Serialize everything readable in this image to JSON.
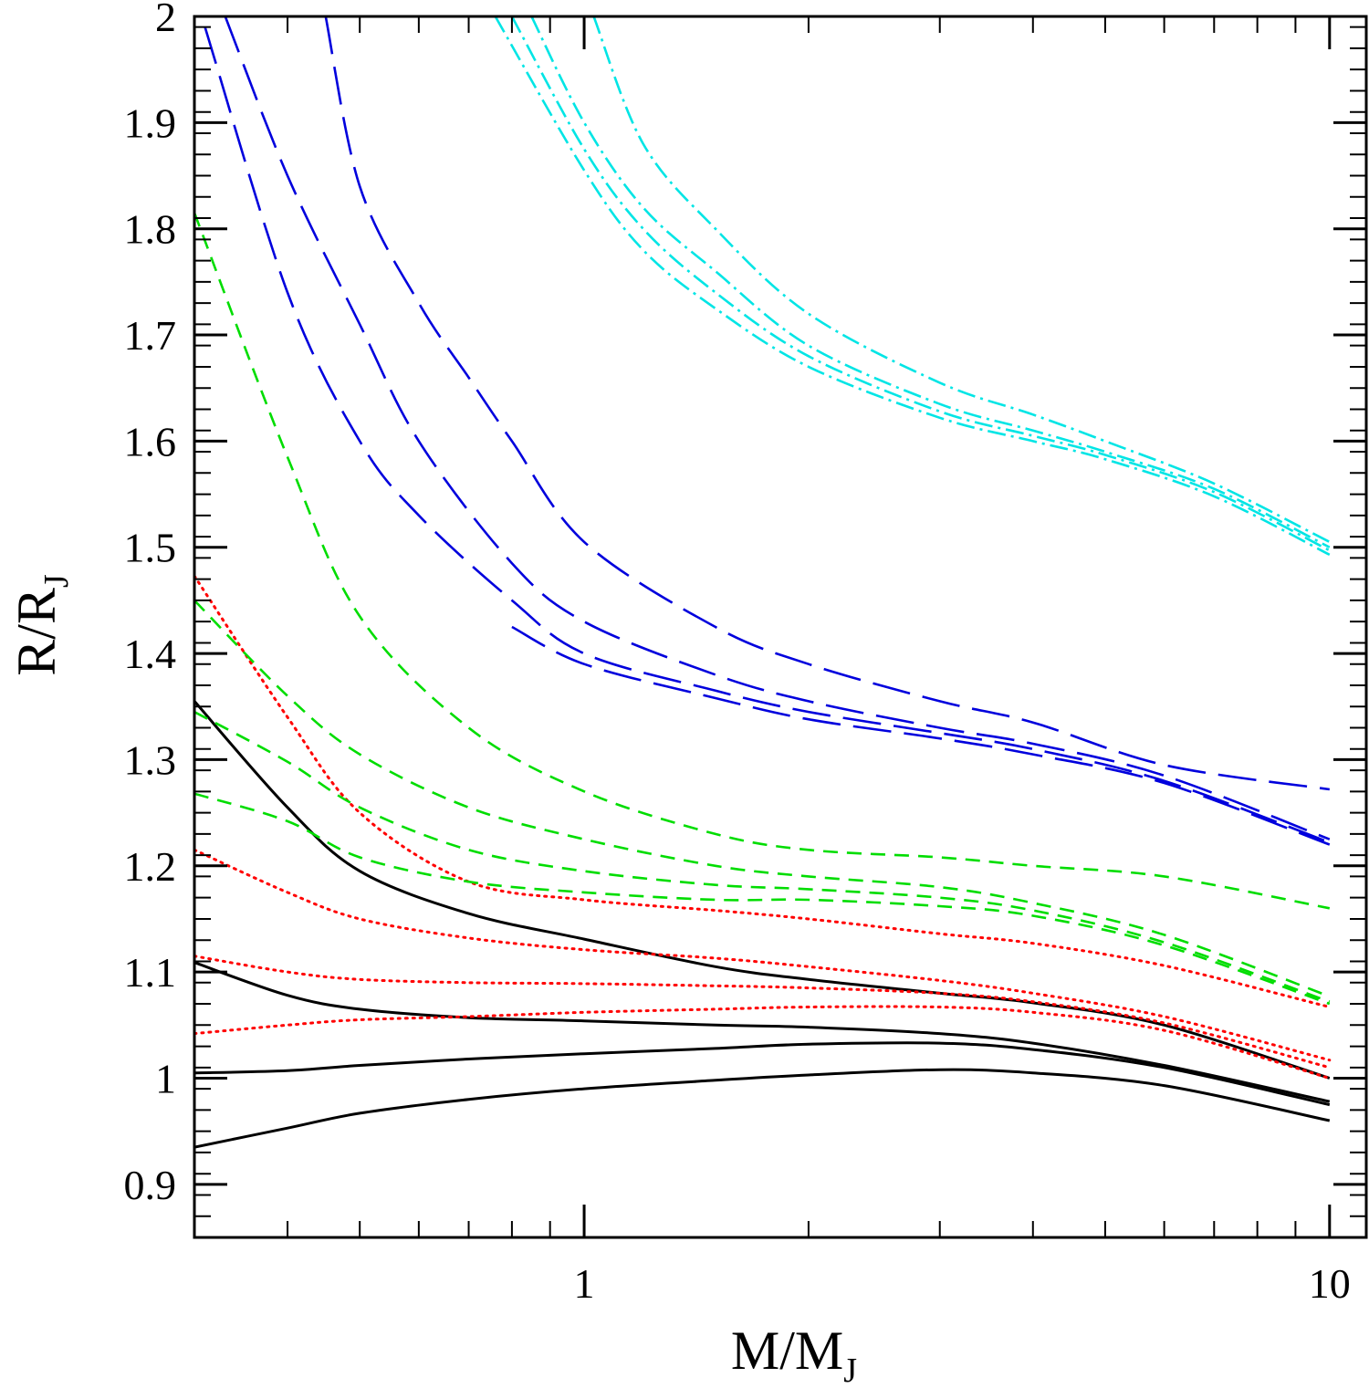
{
  "chart_data": {
    "type": "line",
    "title": "",
    "xlabel": {
      "main": "M/M",
      "sub": "J"
    },
    "ylabel": {
      "main": "R/R",
      "sub": "J"
    },
    "xscale": "log",
    "xlim": [
      0.3,
      11.2
    ],
    "ylim": [
      0.85,
      2.0
    ],
    "x_ticks": [
      {
        "value": 1,
        "label": "1"
      },
      {
        "value": 10,
        "label": "10"
      }
    ],
    "y_ticks": [
      {
        "value": 0.9,
        "label": "0.9"
      },
      {
        "value": 1.0,
        "label": "1"
      },
      {
        "value": 1.1,
        "label": "1.1"
      },
      {
        "value": 1.2,
        "label": "1.2"
      },
      {
        "value": 1.3,
        "label": "1.3"
      },
      {
        "value": 1.4,
        "label": "1.4"
      },
      {
        "value": 1.5,
        "label": "1.5"
      },
      {
        "value": 1.6,
        "label": "1.6"
      },
      {
        "value": 1.7,
        "label": "1.7"
      },
      {
        "value": 1.8,
        "label": "1.8"
      },
      {
        "value": 1.9,
        "label": "1.9"
      },
      {
        "value": 2.0,
        "label": "2"
      }
    ],
    "x_minor_ticks": [
      0.3,
      0.4,
      0.5,
      0.6,
      0.7,
      0.8,
      0.9,
      2,
      3,
      4,
      5,
      6,
      7,
      8,
      9
    ],
    "grid": false,
    "legend": "none",
    "colors": {
      "black": "#000000",
      "red": "#ff0000",
      "green": "#00dd00",
      "blue": "#0000dd",
      "cyan": "#00e5e5"
    },
    "series": [
      {
        "color": "black",
        "style": "solid",
        "x": [
          0.3,
          0.4,
          0.5,
          0.7,
          1.0,
          1.5,
          2.0,
          3.0,
          4.0,
          6.0,
          10.0
        ],
        "y": [
          1.355,
          1.255,
          1.195,
          1.155,
          1.131,
          1.105,
          1.093,
          1.08,
          1.071,
          1.05,
          1.0
        ]
      },
      {
        "color": "black",
        "style": "solid",
        "x": [
          0.3,
          0.4,
          0.5,
          0.7,
          1.0,
          1.5,
          2.0,
          3.0,
          4.0,
          6.0,
          10.0
        ],
        "y": [
          1.109,
          1.078,
          1.065,
          1.057,
          1.054,
          1.05,
          1.048,
          1.042,
          1.033,
          1.012,
          0.978
        ]
      },
      {
        "color": "black",
        "style": "solid",
        "x": [
          0.3,
          0.4,
          0.5,
          0.7,
          1.0,
          1.5,
          2.0,
          3.0,
          4.0,
          6.0,
          10.0
        ],
        "y": [
          1.005,
          1.007,
          1.012,
          1.018,
          1.023,
          1.028,
          1.032,
          1.033,
          1.027,
          1.01,
          0.975
        ]
      },
      {
        "color": "black",
        "style": "solid",
        "x": [
          0.3,
          0.4,
          0.5,
          0.7,
          1.0,
          1.5,
          2.0,
          3.0,
          4.0,
          6.0,
          10.0
        ],
        "y": [
          0.935,
          0.953,
          0.967,
          0.98,
          0.99,
          0.998,
          1.003,
          1.008,
          1.005,
          0.993,
          0.96
        ]
      },
      {
        "color": "red",
        "style": "dotted",
        "x": [
          0.3,
          0.4,
          0.5,
          0.7,
          1.0,
          1.5,
          2.0,
          3.0,
          4.0,
          6.0,
          10.0
        ],
        "y": [
          1.473,
          1.34,
          1.25,
          1.185,
          1.168,
          1.158,
          1.15,
          1.136,
          1.127,
          1.106,
          1.067
        ]
      },
      {
        "color": "red",
        "style": "dotted",
        "x": [
          0.3,
          0.4,
          0.5,
          0.7,
          1.0,
          1.5,
          2.0,
          3.0,
          4.0,
          6.0,
          10.0
        ],
        "y": [
          1.215,
          1.175,
          1.15,
          1.132,
          1.121,
          1.113,
          1.105,
          1.092,
          1.08,
          1.058,
          1.017
        ]
      },
      {
        "color": "red",
        "style": "dotted",
        "x": [
          0.3,
          0.4,
          0.5,
          0.7,
          1.0,
          1.5,
          2.0,
          3.0,
          4.0,
          6.0,
          10.0
        ],
        "y": [
          1.115,
          1.1,
          1.093,
          1.09,
          1.089,
          1.087,
          1.085,
          1.08,
          1.072,
          1.052,
          1.01
        ]
      },
      {
        "color": "red",
        "style": "dotted",
        "x": [
          0.3,
          0.4,
          0.5,
          0.7,
          1.0,
          1.5,
          2.0,
          3.0,
          4.0,
          6.0,
          10.0
        ],
        "y": [
          1.042,
          1.05,
          1.055,
          1.058,
          1.062,
          1.065,
          1.067,
          1.067,
          1.062,
          1.045,
          1.0
        ]
      },
      {
        "color": "green",
        "style": "short-dash",
        "x": [
          0.3,
          0.4,
          0.5,
          0.7,
          1.0,
          1.5,
          2.0,
          3.0,
          4.0,
          6.0,
          10.0
        ],
        "y": [
          1.815,
          1.585,
          1.435,
          1.33,
          1.27,
          1.23,
          1.215,
          1.208,
          1.2,
          1.19,
          1.16
        ]
      },
      {
        "color": "green",
        "style": "short-dash",
        "x": [
          0.3,
          0.4,
          0.5,
          0.7,
          1.0,
          1.5,
          2.0,
          3.0,
          4.0,
          6.0,
          10.0
        ],
        "y": [
          1.45,
          1.36,
          1.305,
          1.255,
          1.225,
          1.2,
          1.19,
          1.18,
          1.165,
          1.135,
          1.077
        ]
      },
      {
        "color": "green",
        "style": "short-dash",
        "x": [
          0.3,
          0.4,
          0.5,
          0.7,
          1.0,
          1.5,
          2.0,
          3.0,
          4.0,
          6.0,
          10.0
        ],
        "y": [
          1.345,
          1.298,
          1.255,
          1.215,
          1.195,
          1.182,
          1.178,
          1.17,
          1.158,
          1.128,
          1.072
        ]
      },
      {
        "color": "green",
        "style": "short-dash",
        "x": [
          0.3,
          0.4,
          0.5,
          0.7,
          1.0,
          1.5,
          2.0,
          3.0,
          4.0,
          6.0,
          10.0
        ],
        "y": [
          1.268,
          1.242,
          1.208,
          1.185,
          1.175,
          1.168,
          1.168,
          1.162,
          1.153,
          1.125,
          1.07
        ]
      },
      {
        "color": "blue",
        "style": "long-dash",
        "x": [
          0.45,
          0.5,
          0.6,
          0.7,
          0.8,
          1.0,
          1.5,
          2.0,
          3.0,
          4.0,
          6.0,
          10.0
        ],
        "y": [
          2.0,
          1.84,
          1.73,
          1.66,
          1.6,
          1.505,
          1.425,
          1.39,
          1.355,
          1.335,
          1.295,
          1.272
        ]
      },
      {
        "color": "blue",
        "style": "long-dash",
        "x": [
          0.33,
          0.4,
          0.5,
          0.6,
          0.8,
          1.0,
          1.5,
          2.0,
          3.0,
          4.0,
          6.0,
          10.0
        ],
        "y": [
          2.0,
          1.85,
          1.71,
          1.6,
          1.485,
          1.43,
          1.38,
          1.355,
          1.33,
          1.315,
          1.285,
          1.225
        ]
      },
      {
        "color": "blue",
        "style": "long-dash",
        "x": [
          0.31,
          0.4,
          0.5,
          0.6,
          0.8,
          1.0,
          1.5,
          2.0,
          3.0,
          4.0,
          6.0,
          10.0
        ],
        "y": [
          1.99,
          1.74,
          1.6,
          1.53,
          1.45,
          1.4,
          1.365,
          1.345,
          1.325,
          1.31,
          1.28,
          1.222
        ]
      },
      {
        "color": "blue",
        "style": "long-dash",
        "x": [
          0.8,
          1.0,
          1.5,
          2.0,
          3.0,
          4.0,
          6.0,
          10.0
        ],
        "y": [
          1.425,
          1.39,
          1.358,
          1.338,
          1.32,
          1.305,
          1.278,
          1.22
        ]
      },
      {
        "color": "cyan",
        "style": "dash-dot",
        "x": [
          1.03,
          1.2,
          1.5,
          2.0,
          3.0,
          4.0,
          5.0,
          7.0,
          10.0
        ],
        "y": [
          2.0,
          1.88,
          1.8,
          1.72,
          1.655,
          1.625,
          1.6,
          1.56,
          1.505
        ]
      },
      {
        "color": "cyan",
        "style": "dash-dot",
        "x": [
          0.85,
          1.0,
          1.2,
          1.5,
          2.0,
          3.0,
          4.0,
          5.0,
          7.0,
          10.0
        ],
        "y": [
          2.0,
          1.9,
          1.82,
          1.76,
          1.69,
          1.635,
          1.61,
          1.59,
          1.555,
          1.5
        ]
      },
      {
        "color": "cyan",
        "style": "dash-dot",
        "x": [
          0.8,
          1.0,
          1.2,
          1.5,
          2.0,
          3.0,
          4.0,
          5.0,
          7.0,
          10.0
        ],
        "y": [
          2.0,
          1.875,
          1.8,
          1.74,
          1.68,
          1.628,
          1.605,
          1.587,
          1.552,
          1.497
        ]
      },
      {
        "color": "cyan",
        "style": "dash-dot",
        "x": [
          0.76,
          1.0,
          1.2,
          1.5,
          2.0,
          3.0,
          4.0,
          5.0,
          7.0,
          10.0
        ],
        "y": [
          2.0,
          1.855,
          1.78,
          1.725,
          1.67,
          1.622,
          1.6,
          1.583,
          1.548,
          1.493
        ]
      }
    ]
  }
}
